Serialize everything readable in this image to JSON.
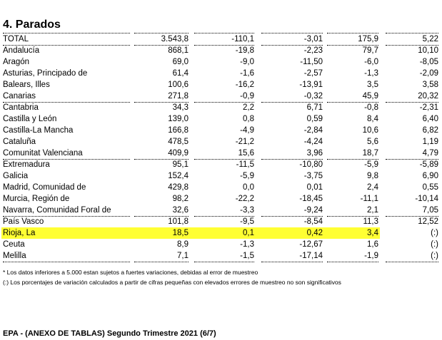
{
  "title": "4. Parados",
  "rows": [
    {
      "name": "TOTAL",
      "v": [
        "3.543,8",
        "-110,1",
        "-3,01",
        "175,9",
        "5,22"
      ],
      "line": true
    },
    {
      "name": "Andalucía",
      "v": [
        "868,1",
        "-19,8",
        "-2,23",
        "79,7",
        "10,10"
      ]
    },
    {
      "name": "Aragón",
      "v": [
        "69,0",
        "-9,0",
        "-11,50",
        "-6,0",
        "-8,05"
      ]
    },
    {
      "name": "Asturias, Principado de",
      "v": [
        "61,4",
        "-1,6",
        "-2,57",
        "-1,3",
        "-2,09"
      ]
    },
    {
      "name": "Balears, Illes",
      "v": [
        "100,6",
        "-16,2",
        "-13,91",
        "3,5",
        "3,58"
      ]
    },
    {
      "name": "Canarias",
      "v": [
        "271,8",
        "-0,9",
        "-0,32",
        "45,9",
        "20,32"
      ],
      "line": true
    },
    {
      "name": "Cantabria",
      "v": [
        "34,3",
        "2,2",
        "6,71",
        "-0,8",
        "-2,31"
      ]
    },
    {
      "name": "Castilla y León",
      "v": [
        "139,0",
        "0,8",
        "0,59",
        "8,4",
        "6,40"
      ]
    },
    {
      "name": "Castilla-La Mancha",
      "v": [
        "166,8",
        "-4,9",
        "-2,84",
        "10,6",
        "6,82"
      ]
    },
    {
      "name": "Cataluña",
      "v": [
        "478,5",
        "-21,2",
        "-4,24",
        "5,6",
        "1,19"
      ]
    },
    {
      "name": "Comunitat Valenciana",
      "v": [
        "409,9",
        "15,6",
        "3,96",
        "18,7",
        "4,79"
      ],
      "line": true
    },
    {
      "name": "Extremadura",
      "v": [
        "95,1",
        "-11,5",
        "-10,80",
        "-5,9",
        "-5,89"
      ]
    },
    {
      "name": "Galicia",
      "v": [
        "152,4",
        "-5,9",
        "-3,75",
        "9,8",
        "6,90"
      ]
    },
    {
      "name": "Madrid, Comunidad de",
      "v": [
        "429,8",
        "0,0",
        "0,01",
        "2,4",
        "0,55"
      ]
    },
    {
      "name": "Murcia, Región de",
      "v": [
        "98,2",
        "-22,2",
        "-18,45",
        "-11,1",
        "-10,14"
      ]
    },
    {
      "name": "Navarra, Comunidad Foral de",
      "v": [
        "32,6",
        "-3,3",
        "-9,24",
        "2,1",
        "7,05"
      ],
      "line": true
    },
    {
      "name": "País Vasco",
      "v": [
        "101,8",
        "-9,5",
        "-8,54",
        "11,3",
        "12,52"
      ]
    },
    {
      "name": "Rioja, La",
      "v": [
        "18,5",
        "0,1",
        "0,42",
        "3,4",
        "(:)"
      ],
      "highlight": true
    },
    {
      "name": "Ceuta",
      "v": [
        "8,9",
        "-1,3",
        "-12,67",
        "1,6",
        "(:)"
      ]
    },
    {
      "name": "Melilla",
      "v": [
        "7,1",
        "-1,5",
        "-17,14",
        "-1,9",
        "(:)"
      ],
      "line": true
    }
  ],
  "notes": [
    "* Los datos inferiores a 5.000 estan sujetos a fuertes variaciones, debidas al error de muestreo",
    "(:) Los porcentajes de variación calculados a partir de cifras pequeñas con elevados errores de muestreo no son significativos"
  ],
  "footer": "EPA - (ANEXO DE TABLAS) Segundo Trimestre 2021 (6/7)",
  "colors": {
    "highlight": "#ffff33"
  }
}
